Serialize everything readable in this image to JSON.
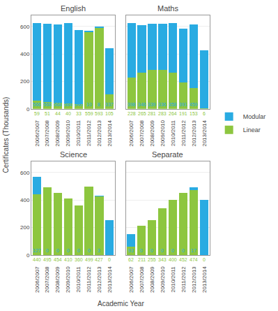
{
  "chart_data": [
    {
      "type": "bar",
      "title": "English",
      "xlabel": "Academic Year",
      "ylabel": "Certificates (Thousands)",
      "categories": [
        "2006/2007",
        "2007/2008",
        "2008/2009",
        "2009/2010",
        "2010/2011",
        "2011/2012",
        "2012/2013",
        "2013/2014"
      ],
      "series": [
        {
          "name": "Linear",
          "color": "#8DC63F",
          "values": [
            59,
            51,
            44,
            40,
            33,
            559,
            593,
            105
          ]
        },
        {
          "name": "Modular",
          "color": "#29ABE2",
          "values": [
            566,
            568,
            568,
            584,
            540,
            10,
            8,
            337
          ]
        }
      ],
      "stacked": true,
      "ylim": [
        0,
        680
      ],
      "yticks": [
        0,
        200,
        400,
        600
      ],
      "grid": true,
      "legend": "right",
      "data_labels": true
    },
    {
      "type": "bar",
      "title": "Maths",
      "xlabel": "Academic Year",
      "ylabel": "Certificates (Thousands)",
      "categories": [
        "2006/2007",
        "2007/2008",
        "2008/2009",
        "2009/2010",
        "2010/2011",
        "2011/2012",
        "2012/2013",
        "2013/2014"
      ],
      "series": [
        {
          "name": "Linear",
          "color": "#8DC63F",
          "values": [
            228,
            265,
            281,
            283,
            264,
            191,
            153,
            6
          ]
        },
        {
          "name": "Modular",
          "color": "#29ABE2",
          "values": [
            398,
            346,
            339,
            336,
            358,
            391,
            459,
            421
          ]
        }
      ],
      "stacked": true,
      "ylim": [
        0,
        680
      ],
      "yticks": [
        0,
        200,
        400,
        600
      ],
      "grid": true,
      "legend": "right",
      "data_labels": true,
      "tick_labels": "x"
    },
    {
      "type": "bar",
      "title": "Science",
      "xlabel": "Academic Year",
      "ylabel": "Certificates (Thousands)",
      "categories": [
        "2006/2007",
        "2007/2008",
        "2008/2009",
        "2009/2010",
        "2010/2011",
        "2011/2012",
        "2012/2013",
        "2013/2014"
      ],
      "series": [
        {
          "name": "Linear",
          "color": "#8DC63F",
          "values": [
            440,
            495,
            454,
            410,
            360,
            499,
            427,
            0
          ]
        },
        {
          "name": "Modular",
          "color": "#29ABE2",
          "values": [
            127,
            0,
            0,
            0,
            0,
            0,
            3,
            253
          ]
        }
      ],
      "stacked": true,
      "ylim": [
        0,
        680
      ],
      "yticks": [
        0,
        200,
        400,
        600
      ],
      "grid": true,
      "legend": "right",
      "data_labels": true
    },
    {
      "type": "bar",
      "title": "Separate",
      "xlabel": "Academic Year",
      "ylabel": "Certificates (Thousands)",
      "categories": [
        "2006/2007",
        "2007/2008",
        "2008/2009",
        "2009/2010",
        "2010/2011",
        "2011/2012",
        "2012/2013",
        "2013/2014"
      ],
      "series": [
        {
          "name": "Linear",
          "color": "#8DC63F",
          "values": [
            62,
            211,
            255,
            343,
            400,
            452,
            474,
            0
          ]
        },
        {
          "name": "Modular",
          "color": "#29ABE2",
          "values": [
            93,
            0,
            0,
            0,
            0,
            0,
            17,
            401
          ]
        }
      ],
      "stacked": true,
      "ylim": [
        0,
        680
      ],
      "yticks": [
        0,
        200,
        400,
        600
      ],
      "grid": true,
      "legend": "right",
      "data_labels": true,
      "tick_labels": "x"
    }
  ]
}
